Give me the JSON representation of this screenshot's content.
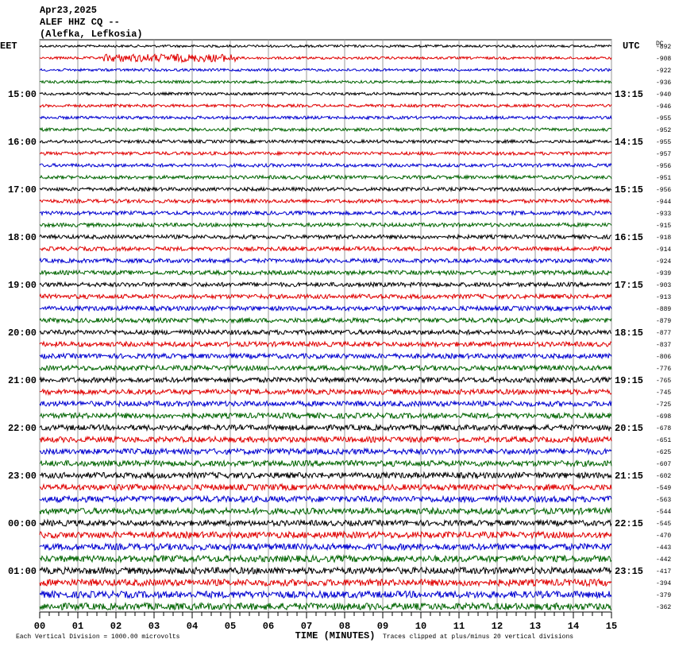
{
  "header": {
    "date": "Apr23,2025",
    "station": "ALEF HHZ CQ --",
    "location": "(Alefka, Lefkosia)"
  },
  "left_axis": {
    "title": "EET",
    "labels": [
      "15:00",
      "16:00",
      "17:00",
      "18:00",
      "19:00",
      "20:00",
      "21:00",
      "22:00",
      "23:00",
      "00:00",
      "01:00"
    ]
  },
  "right_axis": {
    "title": "UTC",
    "labels": [
      "13:15",
      "14:15",
      "15:15",
      "16:15",
      "17:15",
      "18:15",
      "19:15",
      "20:15",
      "21:15",
      "22:15",
      "23:15"
    ]
  },
  "offsets": {
    "title": "DC",
    "values": [
      -892,
      -908,
      -922,
      -936,
      -940,
      -946,
      -955,
      -952,
      -955,
      -957,
      -956,
      -951,
      -956,
      -944,
      -933,
      -915,
      -918,
      -914,
      -924,
      -939,
      -903,
      -913,
      -889,
      -879,
      -877,
      -837,
      -806,
      -776,
      -765,
      -745,
      -725,
      -698,
      -678,
      -651,
      -625,
      -607,
      -602,
      -549,
      -563,
      -544,
      -545,
      -470,
      -443,
      -442,
      -417,
      -394,
      -379,
      -362
    ]
  },
  "x_axis": {
    "title": "TIME (MINUTES)",
    "labels": [
      "00",
      "01",
      "02",
      "03",
      "04",
      "05",
      "06",
      "07",
      "08",
      "09",
      "10",
      "11",
      "12",
      "13",
      "14",
      "15"
    ]
  },
  "footer": {
    "scale": "Each Vertical Division = 1000.00 microvolts",
    "clipping": "Traces clipped at plus/minus 20 vertical divisions"
  }
}
